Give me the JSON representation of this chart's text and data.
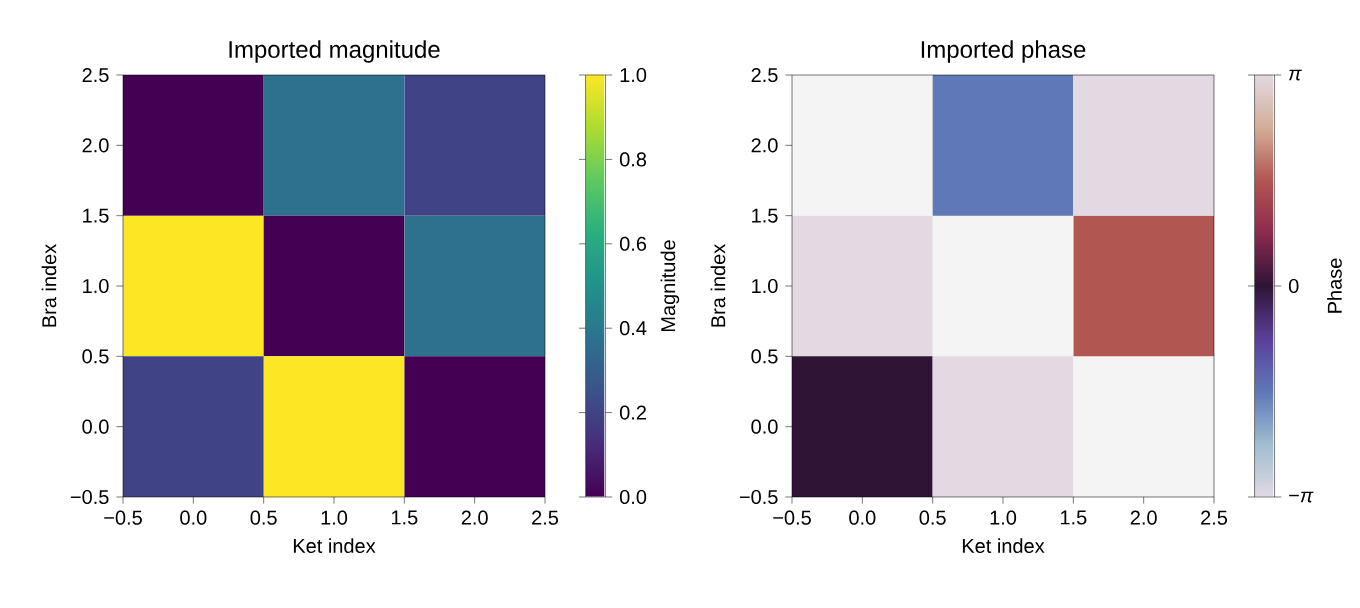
{
  "chart_data": [
    {
      "type": "heatmap",
      "title": "Imported magnitude",
      "xlabel": "Ket index",
      "ylabel": "Bra index",
      "clabel": "Magnitude",
      "cells": [
        [
          0.0,
          0.37,
          0.2
        ],
        [
          1.0,
          0.0,
          0.37
        ],
        [
          0.2,
          1.0,
          0.0
        ]
      ],
      "clim": [
        0,
        1
      ],
      "cticks": [
        {
          "value": 0,
          "label": "0.0"
        },
        {
          "value": 0.2,
          "label": "0.2"
        },
        {
          "value": 0.4,
          "label": "0.4"
        },
        {
          "value": 0.6,
          "label": "0.6"
        },
        {
          "value": 0.8,
          "label": "0.8"
        },
        {
          "value": 1,
          "label": "1.0"
        }
      ],
      "xlim": [
        -0.5,
        2.5
      ],
      "ylim": [
        -0.5,
        2.5
      ],
      "xticks": [
        {
          "value": -0.5,
          "label": "−0.5"
        },
        {
          "value": 0,
          "label": "0.0"
        },
        {
          "value": 0.5,
          "label": "0.5"
        },
        {
          "value": 1,
          "label": "1.0"
        },
        {
          "value": 1.5,
          "label": "1.5"
        },
        {
          "value": 2,
          "label": "2.0"
        },
        {
          "value": 2.5,
          "label": "2.5"
        }
      ],
      "yticks": [
        {
          "value": -0.5,
          "label": "−0.5"
        },
        {
          "value": 0,
          "label": "0.0"
        },
        {
          "value": 0.5,
          "label": "0.5"
        },
        {
          "value": 1,
          "label": "1.0"
        },
        {
          "value": 1.5,
          "label": "1.5"
        },
        {
          "value": 2,
          "label": "2.0"
        },
        {
          "value": 2.5,
          "label": "2.5"
        }
      ]
    },
    {
      "type": "heatmap",
      "title": "Imported phase",
      "xlabel": "Ket index",
      "ylabel": "Bra index",
      "clabel": "Phase",
      "cells": [
        [
          null,
          -1.57,
          3.14
        ],
        [
          3.14,
          null,
          1.57
        ],
        [
          0.0,
          3.14,
          null
        ]
      ],
      "clim": [
        -3.14159,
        3.14159
      ],
      "cticks": [
        {
          "value": -3.14159,
          "label": "−*π*"
        },
        {
          "value": 0,
          "label": "0"
        },
        {
          "value": 3.14159,
          "label": "*π*"
        }
      ],
      "xlim": [
        -0.5,
        2.5
      ],
      "ylim": [
        -0.5,
        2.5
      ],
      "xticks": [
        {
          "value": -0.5,
          "label": "−0.5"
        },
        {
          "value": 0,
          "label": "0.0"
        },
        {
          "value": 0.5,
          "label": "0.5"
        },
        {
          "value": 1,
          "label": "1.0"
        },
        {
          "value": 1.5,
          "label": "1.5"
        },
        {
          "value": 2,
          "label": "2.0"
        },
        {
          "value": 2.5,
          "label": "2.5"
        }
      ],
      "yticks": [
        {
          "value": -0.5,
          "label": "−0.5"
        },
        {
          "value": 0,
          "label": "0.0"
        },
        {
          "value": 0.5,
          "label": "0.5"
        },
        {
          "value": 1,
          "label": "1.0"
        },
        {
          "value": 1.5,
          "label": "1.5"
        },
        {
          "value": 2,
          "label": "2.0"
        },
        {
          "value": 2.5,
          "label": "2.5"
        }
      ]
    }
  ]
}
